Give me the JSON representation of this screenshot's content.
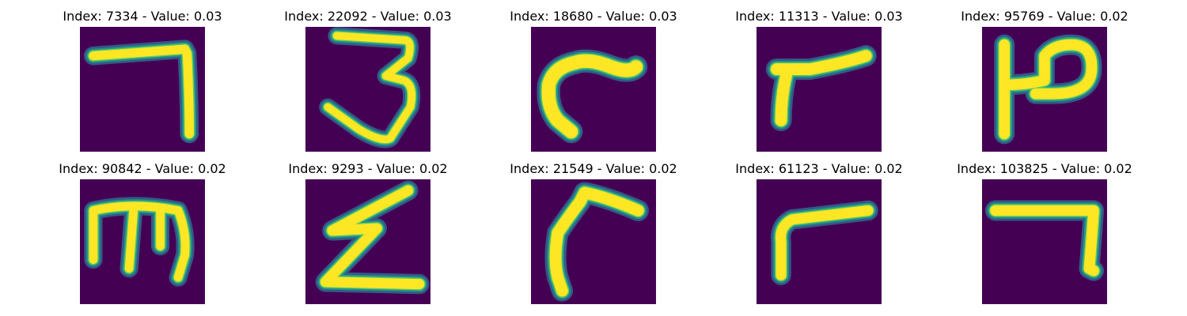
{
  "figure": {
    "background": "#ffffff",
    "panel_background": "#440154",
    "colormap": "viridis",
    "axes_visible": false
  },
  "items": [
    {
      "title": "Index: 7334 - Value: 0.03",
      "index": 7334,
      "value": 0.03,
      "glyph": "seven"
    },
    {
      "title": "Index: 22092 - Value: 0.03",
      "index": 22092,
      "value": 0.03,
      "glyph": "three"
    },
    {
      "title": "Index: 18680 - Value: 0.03",
      "index": 18680,
      "value": 0.03,
      "glyph": "hook-c"
    },
    {
      "title": "Index: 11313 - Value: 0.03",
      "index": 11313,
      "value": 0.03,
      "glyph": "hook-r"
    },
    {
      "title": "Index: 95769 - Value: 0.02",
      "index": 95769,
      "value": 0.02,
      "glyph": "p-bar"
    },
    {
      "title": "Index: 90842 - Value: 0.02",
      "index": 90842,
      "value": 0.02,
      "glyph": "m-shape"
    },
    {
      "title": "Index: 9293 - Value: 0.02",
      "index": 9293,
      "value": 0.02,
      "glyph": "z-bolt"
    },
    {
      "title": "Index: 21549 - Value: 0.02",
      "index": 21549,
      "value": 0.02,
      "glyph": "hook-long"
    },
    {
      "title": "Index: 61123 - Value: 0.02",
      "index": 61123,
      "value": 0.02,
      "glyph": "r-shape"
    },
    {
      "title": "Index: 103825 - Value: 0.02",
      "index": 103825,
      "value": 0.02,
      "glyph": "seven-2"
    }
  ]
}
